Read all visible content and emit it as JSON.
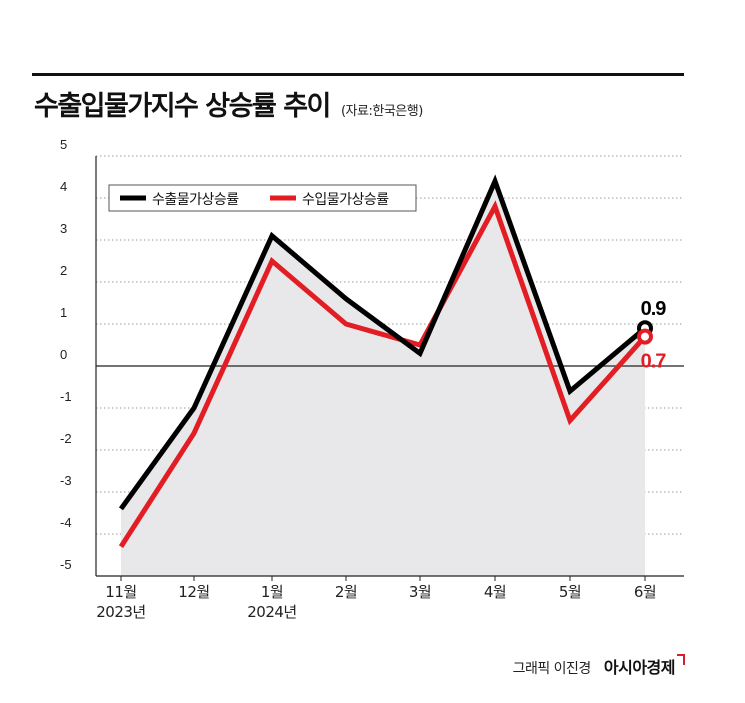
{
  "title": "수출입물가지수 상승률 추이",
  "source": "(자료:한국은행)",
  "credit": "그래픽 이진경",
  "brand": "아시아경제",
  "colors": {
    "export": "#000000",
    "import": "#e21d24",
    "area": "#e8e8ea"
  },
  "chart_data": {
    "type": "line",
    "categories": [
      [
        "11월",
        "2023년"
      ],
      [
        "12월"
      ],
      [
        "1월",
        "2024년"
      ],
      [
        "2월"
      ],
      [
        "3월"
      ],
      [
        "4월"
      ],
      [
        "5월"
      ],
      [
        "6월"
      ]
    ],
    "series": [
      {
        "name": "수출물가상승률",
        "values": [
          -3.4,
          -1.0,
          3.1,
          1.6,
          0.3,
          4.4,
          -0.6,
          0.9
        ]
      },
      {
        "name": "수입물가상승률",
        "values": [
          -4.3,
          -1.6,
          2.5,
          1.0,
          0.5,
          3.8,
          -1.3,
          0.7
        ]
      }
    ],
    "y_ticks": [
      "5",
      "4",
      "3",
      "2",
      "1",
      "0",
      "-1",
      "-2",
      "-3",
      "-4",
      "-5"
    ],
    "ylim": [
      -5,
      5
    ],
    "grid": true,
    "legend": "top-left",
    "annotations": [
      {
        "series": 0,
        "index": 7,
        "text": "0.9"
      },
      {
        "series": 1,
        "index": 7,
        "text": "0.7"
      }
    ]
  }
}
